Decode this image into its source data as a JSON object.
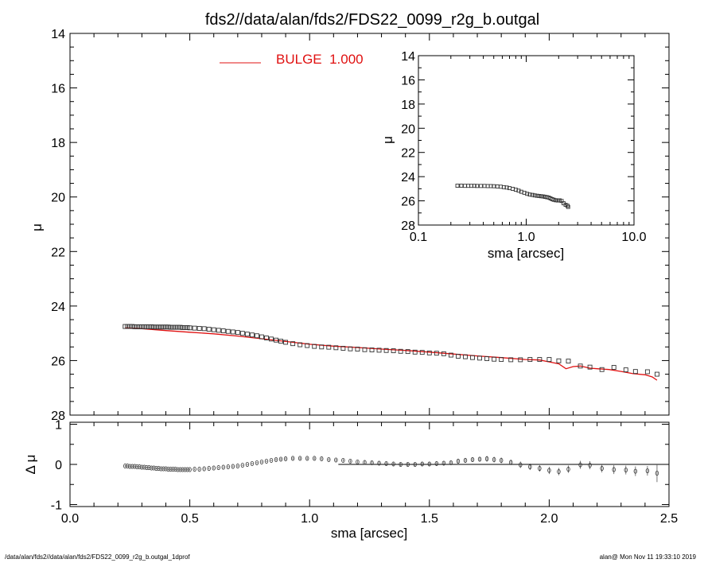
{
  "title": "fds2//data/alan/fds2/FDS22_0099_r2g_b.outgal",
  "footer": {
    "left": "/data/alan/fds2//data/alan/fds2/FDS22_0099_r2g_b.outgal_1dprof",
    "right": "alan@  Mon Nov 11 19:33:10 2019"
  },
  "colors": {
    "model": "#e01010",
    "data": "#000000",
    "axes": "#000000"
  },
  "chart_data": [
    {
      "id": "main",
      "type": "scatter",
      "xlabel": "",
      "ylabel": "μ",
      "xlim": [
        0.0,
        2.5
      ],
      "ylim": [
        28,
        14
      ],
      "yticks": [
        "14",
        "16",
        "18",
        "20",
        "22",
        "24",
        "26",
        "28"
      ],
      "yticks_values": [
        14,
        16,
        18,
        20,
        22,
        24,
        26,
        28
      ],
      "legend": {
        "label": "BULGE  1.000",
        "position": "top-center"
      },
      "series": [
        {
          "kind": "points",
          "x": [
            0.23,
            0.24,
            0.25,
            0.26,
            0.27,
            0.28,
            0.29,
            0.3,
            0.31,
            0.32,
            0.33,
            0.34,
            0.35,
            0.36,
            0.37,
            0.38,
            0.39,
            0.4,
            0.41,
            0.42,
            0.43,
            0.44,
            0.45,
            0.46,
            0.47,
            0.48,
            0.49,
            0.5,
            0.52,
            0.54,
            0.56,
            0.58,
            0.6,
            0.62,
            0.64,
            0.66,
            0.68,
            0.7,
            0.72,
            0.74,
            0.76,
            0.78,
            0.8,
            0.82,
            0.84,
            0.86,
            0.88,
            0.9,
            0.93,
            0.96,
            0.99,
            1.02,
            1.05,
            1.08,
            1.11,
            1.14,
            1.17,
            1.2,
            1.23,
            1.26,
            1.29,
            1.32,
            1.35,
            1.38,
            1.41,
            1.44,
            1.47,
            1.5,
            1.53,
            1.56,
            1.59,
            1.62,
            1.65,
            1.68,
            1.71,
            1.74,
            1.77,
            1.8,
            1.84,
            1.88,
            1.92,
            1.96,
            2.0,
            2.04,
            2.08,
            2.13,
            2.17,
            2.22,
            2.27,
            2.32,
            2.36,
            2.41,
            2.45
          ],
          "y": [
            24.75,
            24.75,
            24.75,
            24.75,
            24.76,
            24.76,
            24.76,
            24.76,
            24.76,
            24.76,
            24.76,
            24.76,
            24.77,
            24.77,
            24.77,
            24.77,
            24.77,
            24.77,
            24.77,
            24.78,
            24.78,
            24.78,
            24.78,
            24.78,
            24.79,
            24.79,
            24.79,
            24.8,
            24.81,
            24.82,
            24.83,
            24.85,
            24.87,
            24.89,
            24.91,
            24.93,
            24.95,
            24.97,
            25.0,
            25.03,
            25.06,
            25.09,
            25.13,
            25.17,
            25.21,
            25.25,
            25.29,
            25.33,
            25.38,
            25.42,
            25.45,
            25.48,
            25.5,
            25.51,
            25.53,
            25.55,
            25.57,
            25.58,
            25.6,
            25.61,
            25.62,
            25.63,
            25.64,
            25.66,
            25.67,
            25.69,
            25.7,
            25.72,
            25.73,
            25.75,
            25.8,
            25.84,
            25.86,
            25.89,
            25.91,
            25.93,
            25.95,
            25.96,
            25.97,
            25.97,
            25.96,
            25.96,
            25.96,
            26.01,
            26.02,
            26.2,
            26.24,
            26.33,
            26.25,
            26.34,
            26.4,
            26.41,
            26.5
          ]
        },
        {
          "kind": "line",
          "name": "BULGE  1.000",
          "x": [
            0.23,
            0.3,
            0.4,
            0.5,
            0.6,
            0.7,
            0.8,
            0.9,
            1.0,
            1.1,
            1.2,
            1.3,
            1.4,
            1.5,
            1.6,
            1.7,
            1.8,
            1.9,
            1.96,
            2.0,
            2.04,
            2.07,
            2.1,
            2.13,
            2.17,
            2.2,
            2.25,
            2.3,
            2.35,
            2.4,
            2.43,
            2.45
          ],
          "y": [
            24.8,
            24.83,
            24.9,
            24.96,
            25.02,
            25.1,
            25.2,
            25.3,
            25.4,
            25.47,
            25.52,
            25.58,
            25.63,
            25.69,
            25.76,
            25.83,
            25.89,
            25.96,
            25.98,
            26.05,
            26.12,
            26.3,
            26.22,
            26.2,
            26.28,
            26.3,
            26.33,
            26.4,
            26.48,
            26.52,
            26.6,
            26.72
          ]
        }
      ]
    },
    {
      "id": "residual",
      "type": "scatter",
      "xlabel": "sma [arcsec]",
      "ylabel": "Δ μ",
      "xlim": [
        0.0,
        2.5
      ],
      "ylim": [
        -1.05,
        1.05
      ],
      "xticks": [
        "0.0",
        "0.5",
        "1.0",
        "1.5",
        "2.0",
        "2.5"
      ],
      "xticks_values": [
        0.0,
        0.5,
        1.0,
        1.5,
        2.0,
        2.5
      ],
      "yticks": [
        "1",
        "0",
        "-1"
      ],
      "yticks_values": [
        1,
        0,
        -1
      ],
      "zero_line": {
        "x": [
          1.12,
          2.5
        ],
        "y": 0
      },
      "series": [
        {
          "kind": "points_with_errors",
          "x": [
            0.23,
            0.24,
            0.25,
            0.26,
            0.27,
            0.28,
            0.29,
            0.3,
            0.31,
            0.32,
            0.33,
            0.34,
            0.35,
            0.36,
            0.37,
            0.38,
            0.39,
            0.4,
            0.41,
            0.42,
            0.43,
            0.44,
            0.45,
            0.46,
            0.47,
            0.48,
            0.49,
            0.5,
            0.52,
            0.54,
            0.56,
            0.58,
            0.6,
            0.62,
            0.64,
            0.66,
            0.68,
            0.7,
            0.72,
            0.74,
            0.76,
            0.78,
            0.8,
            0.82,
            0.84,
            0.86,
            0.88,
            0.9,
            0.93,
            0.96,
            0.99,
            1.02,
            1.05,
            1.08,
            1.11,
            1.14,
            1.17,
            1.2,
            1.23,
            1.26,
            1.29,
            1.32,
            1.35,
            1.38,
            1.41,
            1.44,
            1.47,
            1.5,
            1.53,
            1.56,
            1.59,
            1.62,
            1.65,
            1.68,
            1.71,
            1.74,
            1.77,
            1.8,
            1.84,
            1.88,
            1.92,
            1.96,
            2.0,
            2.04,
            2.08,
            2.13,
            2.17,
            2.22,
            2.27,
            2.32,
            2.36,
            2.41,
            2.45
          ],
          "y": [
            -0.04,
            -0.04,
            -0.05,
            -0.05,
            -0.05,
            -0.06,
            -0.06,
            -0.07,
            -0.07,
            -0.08,
            -0.08,
            -0.09,
            -0.09,
            -0.1,
            -0.1,
            -0.11,
            -0.11,
            -0.11,
            -0.12,
            -0.12,
            -0.12,
            -0.12,
            -0.13,
            -0.13,
            -0.13,
            -0.13,
            -0.13,
            -0.13,
            -0.12,
            -0.12,
            -0.11,
            -0.1,
            -0.09,
            -0.08,
            -0.07,
            -0.06,
            -0.05,
            -0.04,
            -0.02,
            0.0,
            0.02,
            0.04,
            0.06,
            0.08,
            0.1,
            0.12,
            0.13,
            0.14,
            0.15,
            0.15,
            0.15,
            0.15,
            0.14,
            0.12,
            0.11,
            0.1,
            0.08,
            0.06,
            0.05,
            0.04,
            0.03,
            0.02,
            0.01,
            0.0,
            0.0,
            0.0,
            0.01,
            0.01,
            0.02,
            0.03,
            0.04,
            0.08,
            0.1,
            0.12,
            0.13,
            0.14,
            0.12,
            0.1,
            0.05,
            -0.01,
            -0.06,
            -0.1,
            -0.15,
            -0.18,
            -0.12,
            -0.01,
            -0.02,
            -0.1,
            -0.13,
            -0.14,
            -0.17,
            -0.16,
            -0.22
          ],
          "err": [
            0.02,
            0.02,
            0.02,
            0.02,
            0.02,
            0.02,
            0.02,
            0.02,
            0.02,
            0.02,
            0.02,
            0.02,
            0.02,
            0.02,
            0.02,
            0.02,
            0.02,
            0.02,
            0.02,
            0.02,
            0.02,
            0.02,
            0.02,
            0.02,
            0.02,
            0.02,
            0.02,
            0.02,
            0.02,
            0.02,
            0.02,
            0.02,
            0.02,
            0.02,
            0.02,
            0.02,
            0.02,
            0.02,
            0.02,
            0.02,
            0.02,
            0.02,
            0.02,
            0.02,
            0.02,
            0.03,
            0.03,
            0.03,
            0.03,
            0.03,
            0.03,
            0.03,
            0.03,
            0.03,
            0.03,
            0.03,
            0.03,
            0.03,
            0.04,
            0.04,
            0.04,
            0.04,
            0.04,
            0.04,
            0.04,
            0.04,
            0.05,
            0.05,
            0.05,
            0.05,
            0.05,
            0.06,
            0.06,
            0.06,
            0.06,
            0.07,
            0.07,
            0.07,
            0.07,
            0.08,
            0.08,
            0.08,
            0.09,
            0.09,
            0.09,
            0.1,
            0.1,
            0.1,
            0.11,
            0.11,
            0.12,
            0.12,
            0.22
          ]
        }
      ]
    },
    {
      "id": "inset",
      "type": "scatter",
      "xscale": "log",
      "xlabel": "sma [arcsec]",
      "ylabel": "μ",
      "xlim": [
        0.1,
        10.0
      ],
      "ylim": [
        28,
        14
      ],
      "xticks": [
        "0.1",
        "1.0",
        "10.0"
      ],
      "xticks_values": [
        0.1,
        1.0,
        10.0
      ],
      "yticks": [
        "14",
        "16",
        "18",
        "20",
        "22",
        "24",
        "26",
        "28"
      ],
      "yticks_values": [
        14,
        16,
        18,
        20,
        22,
        24,
        26,
        28
      ],
      "series": [
        {
          "kind": "points",
          "x": [
            0.23,
            0.25,
            0.27,
            0.29,
            0.31,
            0.33,
            0.35,
            0.38,
            0.41,
            0.44,
            0.47,
            0.5,
            0.54,
            0.58,
            0.62,
            0.66,
            0.7,
            0.75,
            0.8,
            0.85,
            0.9,
            0.96,
            1.02,
            1.08,
            1.14,
            1.2,
            1.26,
            1.32,
            1.38,
            1.44,
            1.5,
            1.56,
            1.62,
            1.68,
            1.74,
            1.8,
            1.88,
            1.96,
            2.04,
            2.13,
            2.22,
            2.32,
            2.41,
            2.45
          ],
          "y": [
            24.75,
            24.75,
            24.76,
            24.76,
            24.76,
            24.76,
            24.77,
            24.77,
            24.77,
            24.78,
            24.78,
            24.79,
            24.81,
            24.83,
            24.87,
            24.9,
            24.95,
            25.01,
            25.08,
            25.16,
            25.25,
            25.33,
            25.42,
            25.48,
            25.51,
            25.55,
            25.58,
            25.6,
            25.62,
            25.64,
            25.67,
            25.7,
            25.73,
            25.8,
            25.86,
            25.91,
            25.95,
            25.97,
            25.96,
            26.01,
            26.2,
            26.33,
            26.4,
            26.5
          ]
        }
      ]
    }
  ]
}
